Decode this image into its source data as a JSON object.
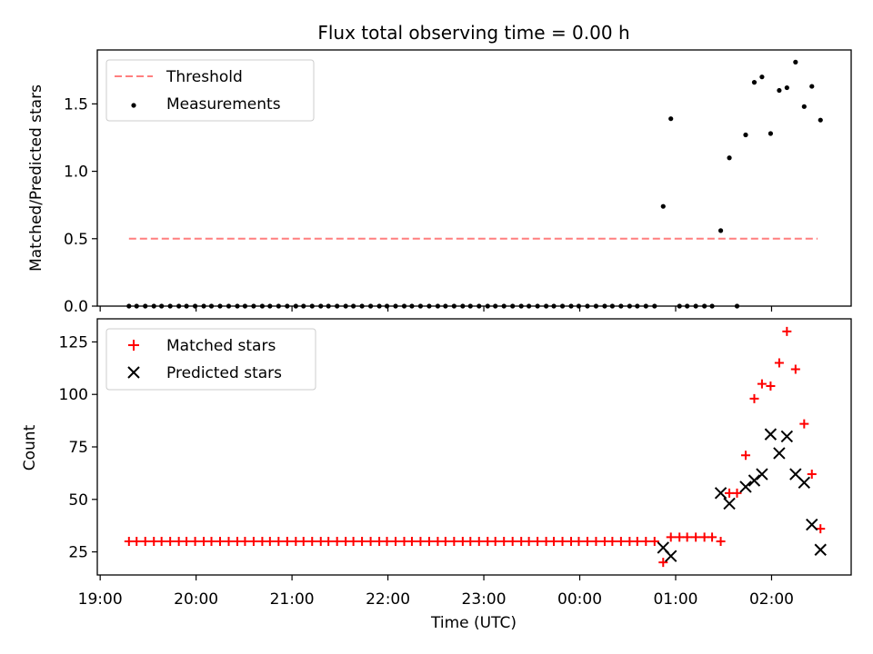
{
  "chart_data": {
    "title": "Flux total observing time = 0.00 h",
    "xlabel": "Time (UTC)",
    "x_axis_type": "time",
    "xlim_hours": [
      18.97,
      26.83
    ],
    "xticks": [
      {
        "value": 19,
        "label": "19:00"
      },
      {
        "value": 20,
        "label": "20:00"
      },
      {
        "value": 21,
        "label": "21:00"
      },
      {
        "value": 22,
        "label": "22:00"
      },
      {
        "value": 23,
        "label": "23:00"
      },
      {
        "value": 24,
        "label": "00:00"
      },
      {
        "value": 25,
        "label": "01:00"
      },
      {
        "value": 26,
        "label": "02:00"
      }
    ],
    "panels": [
      {
        "type": "scatter",
        "ylabel": "Matched/Predicted stars",
        "ylim": [
          0,
          1.9
        ],
        "yticks": [
          {
            "value": 0,
            "label": "0.0"
          },
          {
            "value": 0.5,
            "label": "0.5"
          },
          {
            "value": 1.0,
            "label": "1.0"
          },
          {
            "value": 1.5,
            "label": "1.5"
          }
        ],
        "legend_position": "top-left",
        "series": [
          {
            "name": "Threshold",
            "style": "dashed-line",
            "color": "#ff7f7f",
            "points": [
              [
                19.3,
                0.5
              ],
              [
                26.48,
                0.5
              ]
            ]
          },
          {
            "name": "Measurements",
            "style": "dot",
            "color": "#000000",
            "points": [
              [
                19.3,
                0
              ],
              [
                19.38,
                0
              ],
              [
                19.47,
                0
              ],
              [
                19.56,
                0
              ],
              [
                19.64,
                0
              ],
              [
                19.73,
                0
              ],
              [
                19.82,
                0
              ],
              [
                19.9,
                0
              ],
              [
                19.99,
                0
              ],
              [
                20.08,
                0
              ],
              [
                20.16,
                0
              ],
              [
                20.25,
                0
              ],
              [
                20.34,
                0
              ],
              [
                20.43,
                0
              ],
              [
                20.51,
                0
              ],
              [
                20.6,
                0
              ],
              [
                20.69,
                0
              ],
              [
                20.77,
                0
              ],
              [
                20.86,
                0
              ],
              [
                20.95,
                0
              ],
              [
                21.04,
                0
              ],
              [
                21.12,
                0
              ],
              [
                21.21,
                0
              ],
              [
                21.3,
                0
              ],
              [
                21.38,
                0
              ],
              [
                21.47,
                0
              ],
              [
                21.56,
                0
              ],
              [
                21.64,
                0
              ],
              [
                21.73,
                0
              ],
              [
                21.82,
                0
              ],
              [
                21.91,
                0
              ],
              [
                21.99,
                0
              ],
              [
                22.08,
                0
              ],
              [
                22.17,
                0
              ],
              [
                22.25,
                0
              ],
              [
                22.34,
                0
              ],
              [
                22.43,
                0
              ],
              [
                22.52,
                0
              ],
              [
                22.6,
                0
              ],
              [
                22.69,
                0
              ],
              [
                22.78,
                0
              ],
              [
                22.86,
                0
              ],
              [
                22.95,
                0
              ],
              [
                23.04,
                0
              ],
              [
                23.12,
                0
              ],
              [
                23.21,
                0
              ],
              [
                23.3,
                0
              ],
              [
                23.39,
                0
              ],
              [
                23.47,
                0
              ],
              [
                23.56,
                0
              ],
              [
                23.65,
                0
              ],
              [
                23.73,
                0
              ],
              [
                23.82,
                0
              ],
              [
                23.91,
                0
              ],
              [
                23.99,
                0
              ],
              [
                24.08,
                0
              ],
              [
                24.17,
                0
              ],
              [
                24.26,
                0
              ],
              [
                24.34,
                0
              ],
              [
                24.43,
                0
              ],
              [
                24.52,
                0
              ],
              [
                24.6,
                0
              ],
              [
                24.69,
                0
              ],
              [
                24.78,
                0
              ],
              [
                24.87,
                0.74
              ],
              [
                24.95,
                1.39
              ],
              [
                25.04,
                0
              ],
              [
                25.12,
                0
              ],
              [
                25.21,
                0
              ],
              [
                25.3,
                0
              ],
              [
                25.38,
                0
              ],
              [
                25.47,
                0.56
              ],
              [
                25.56,
                1.1
              ],
              [
                25.64,
                0
              ],
              [
                25.73,
                1.27
              ],
              [
                25.82,
                1.66
              ],
              [
                25.9,
                1.7
              ],
              [
                25.99,
                1.28
              ],
              [
                26.08,
                1.6
              ],
              [
                26.16,
                1.62
              ],
              [
                26.25,
                1.81
              ],
              [
                26.34,
                1.48
              ],
              [
                26.42,
                1.63
              ],
              [
                26.51,
                1.38
              ]
            ]
          }
        ]
      },
      {
        "type": "scatter",
        "ylabel": "Count",
        "ylim": [
          14,
          136
        ],
        "yticks": [
          {
            "value": 25,
            "label": "25"
          },
          {
            "value": 50,
            "label": "50"
          },
          {
            "value": 75,
            "label": "75"
          },
          {
            "value": 100,
            "label": "100"
          },
          {
            "value": 125,
            "label": "125"
          }
        ],
        "legend_position": "top-left",
        "series": [
          {
            "name": "Matched stars",
            "style": "plus",
            "color": "#ff0000",
            "points": [
              [
                19.3,
                30
              ],
              [
                19.38,
                30
              ],
              [
                19.47,
                30
              ],
              [
                19.56,
                30
              ],
              [
                19.64,
                30
              ],
              [
                19.73,
                30
              ],
              [
                19.82,
                30
              ],
              [
                19.9,
                30
              ],
              [
                19.99,
                30
              ],
              [
                20.08,
                30
              ],
              [
                20.16,
                30
              ],
              [
                20.25,
                30
              ],
              [
                20.34,
                30
              ],
              [
                20.43,
                30
              ],
              [
                20.51,
                30
              ],
              [
                20.6,
                30
              ],
              [
                20.69,
                30
              ],
              [
                20.77,
                30
              ],
              [
                20.86,
                30
              ],
              [
                20.95,
                30
              ],
              [
                21.04,
                30
              ],
              [
                21.12,
                30
              ],
              [
                21.21,
                30
              ],
              [
                21.3,
                30
              ],
              [
                21.38,
                30
              ],
              [
                21.47,
                30
              ],
              [
                21.56,
                30
              ],
              [
                21.64,
                30
              ],
              [
                21.73,
                30
              ],
              [
                21.82,
                30
              ],
              [
                21.91,
                30
              ],
              [
                21.99,
                30
              ],
              [
                22.08,
                30
              ],
              [
                22.17,
                30
              ],
              [
                22.25,
                30
              ],
              [
                22.34,
                30
              ],
              [
                22.43,
                30
              ],
              [
                22.52,
                30
              ],
              [
                22.6,
                30
              ],
              [
                22.69,
                30
              ],
              [
                22.78,
                30
              ],
              [
                22.86,
                30
              ],
              [
                22.95,
                30
              ],
              [
                23.04,
                30
              ],
              [
                23.12,
                30
              ],
              [
                23.21,
                30
              ],
              [
                23.3,
                30
              ],
              [
                23.39,
                30
              ],
              [
                23.47,
                30
              ],
              [
                23.56,
                30
              ],
              [
                23.65,
                30
              ],
              [
                23.73,
                30
              ],
              [
                23.82,
                30
              ],
              [
                23.91,
                30
              ],
              [
                23.99,
                30
              ],
              [
                24.08,
                30
              ],
              [
                24.17,
                30
              ],
              [
                24.26,
                30
              ],
              [
                24.34,
                30
              ],
              [
                24.43,
                30
              ],
              [
                24.52,
                30
              ],
              [
                24.6,
                30
              ],
              [
                24.69,
                30
              ],
              [
                24.78,
                30
              ],
              [
                24.87,
                20
              ],
              [
                24.95,
                32
              ],
              [
                25.04,
                32
              ],
              [
                25.12,
                32
              ],
              [
                25.21,
                32
              ],
              [
                25.3,
                32
              ],
              [
                25.38,
                32
              ],
              [
                25.47,
                30
              ],
              [
                25.56,
                53
              ],
              [
                25.64,
                53
              ],
              [
                25.73,
                71
              ],
              [
                25.82,
                98
              ],
              [
                25.9,
                105
              ],
              [
                25.99,
                104
              ],
              [
                26.08,
                115
              ],
              [
                26.16,
                130
              ],
              [
                26.25,
                112
              ],
              [
                26.34,
                86
              ],
              [
                26.42,
                62
              ],
              [
                26.51,
                36
              ]
            ]
          },
          {
            "name": "Predicted stars",
            "style": "x",
            "color": "#000000",
            "points": [
              [
                24.87,
                27
              ],
              [
                24.95,
                23
              ],
              [
                25.47,
                53
              ],
              [
                25.56,
                48
              ],
              [
                25.73,
                56
              ],
              [
                25.82,
                59
              ],
              [
                25.9,
                62
              ],
              [
                25.99,
                81
              ],
              [
                26.08,
                72
              ],
              [
                26.16,
                80
              ],
              [
                26.25,
                62
              ],
              [
                26.34,
                58
              ],
              [
                26.42,
                38
              ],
              [
                26.51,
                26
              ]
            ]
          }
        ]
      }
    ]
  }
}
